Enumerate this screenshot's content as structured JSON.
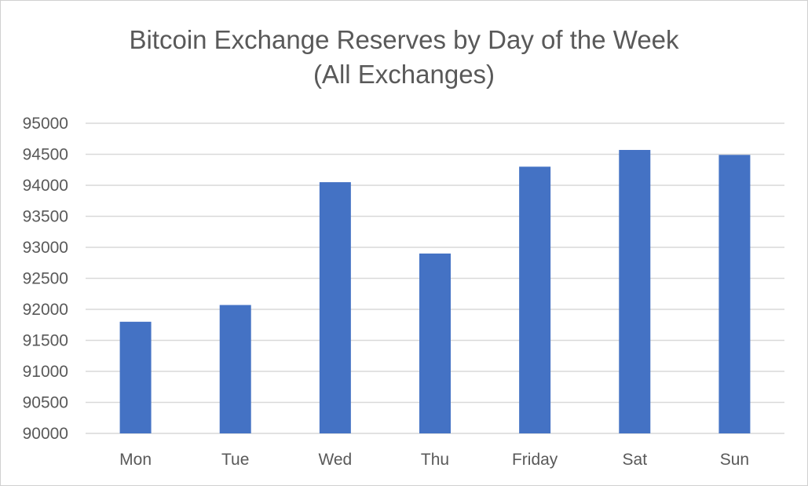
{
  "chart_data": {
    "type": "bar",
    "title_lines": [
      "Bitcoin Exchange Reserves by Day of the Week",
      "(All Exchanges)"
    ],
    "categories": [
      "Mon",
      "Tue",
      "Wed",
      "Thu",
      "Friday",
      "Sat",
      "Sun"
    ],
    "values": [
      91800,
      92070,
      94050,
      92900,
      94300,
      94570,
      94490
    ],
    "ylim": [
      90000,
      95000
    ],
    "yticks": [
      "90000",
      "90500",
      "91000",
      "91500",
      "92000",
      "92500",
      "93000",
      "93500",
      "94000",
      "94500",
      "95000"
    ],
    "xlabel": "",
    "ylabel": "",
    "grid": true,
    "legend": "none",
    "colors": {
      "bar": "#4472C4",
      "grid": "#d9d9d9",
      "text": "#595959"
    }
  }
}
